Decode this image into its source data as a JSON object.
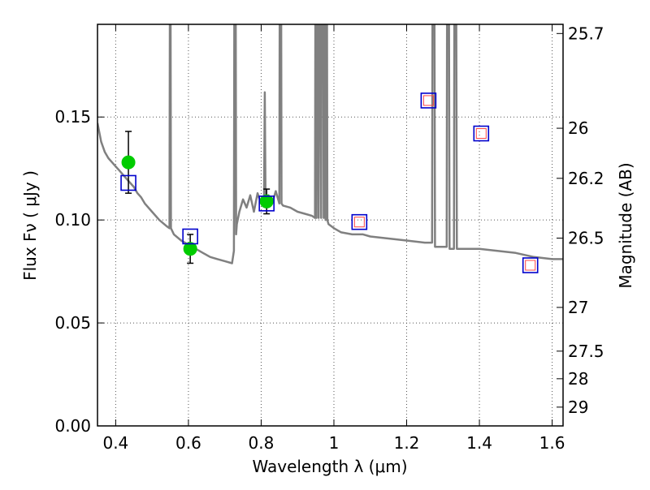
{
  "chart_data": {
    "type": "scatter",
    "xlabel": "Wavelength  λ (μm)",
    "ylabel": "Flux  Fν  ( μJy )",
    "y2label": "Magnitude (AB)",
    "xlim": [
      0.35,
      1.63
    ],
    "ylim": [
      0.0,
      0.195
    ],
    "grid": true,
    "x_ticks": [
      0.4,
      0.6,
      0.8,
      1.0,
      1.2,
      1.4,
      1.6
    ],
    "x_tick_labels": [
      "0.4",
      "0.6",
      "0.8",
      "1",
      "1.2",
      "1.4",
      "1.6"
    ],
    "y_ticks": [
      0.0,
      0.05,
      0.1,
      0.15
    ],
    "y_tick_labels": [
      "0.00",
      "0.05",
      "0.10",
      "0.15"
    ],
    "y2_ticks": [
      {
        "label": "25.7",
        "mag": 25.7
      },
      {
        "label": "26",
        "mag": 26.0
      },
      {
        "label": "26.2",
        "mag": 26.2
      },
      {
        "label": "26.5",
        "mag": 26.5
      },
      {
        "label": "27",
        "mag": 27.0
      },
      {
        "label": "27.5",
        "mag": 27.5
      },
      {
        "label": "28",
        "mag": 28.0
      },
      {
        "label": "29",
        "mag": 29.0
      }
    ],
    "colors": {
      "model": "#808080",
      "observed": "#00cc00",
      "synthetic": "#0000cc",
      "upper": "#ff4444",
      "errorbar": "#000000",
      "grid": "#555555"
    },
    "series": [
      {
        "kind": "model_spectrum",
        "x": [
          0.35,
          0.36,
          0.37,
          0.38,
          0.39,
          0.4,
          0.41,
          0.42,
          0.43,
          0.44,
          0.45,
          0.46,
          0.47,
          0.48,
          0.5,
          0.52,
          0.54,
          0.548,
          0.55,
          0.552,
          0.56,
          0.58,
          0.6,
          0.62,
          0.64,
          0.66,
          0.68,
          0.7,
          0.72,
          0.725,
          0.727,
          0.729,
          0.731,
          0.733,
          0.74,
          0.75,
          0.76,
          0.77,
          0.78,
          0.79,
          0.8,
          0.808,
          0.81,
          0.812,
          0.82,
          0.83,
          0.84,
          0.85,
          0.852,
          0.854,
          0.856,
          0.86,
          0.88,
          0.9,
          0.92,
          0.94,
          0.948,
          0.95,
          0.952,
          0.956,
          0.958,
          0.96,
          0.965,
          0.967,
          0.97,
          0.972,
          0.975,
          0.977,
          0.98,
          0.982,
          0.985,
          1.0,
          1.02,
          1.05,
          1.08,
          1.1,
          1.15,
          1.2,
          1.25,
          1.27,
          1.272,
          1.275,
          1.278,
          1.28,
          1.3,
          1.31,
          1.312,
          1.315,
          1.318,
          1.32,
          1.33,
          1.332,
          1.335,
          1.338,
          1.34,
          1.4,
          1.45,
          1.5,
          1.55,
          1.6,
          1.63
        ],
        "y": [
          0.147,
          0.138,
          0.133,
          0.13,
          0.128,
          0.126,
          0.124,
          0.122,
          0.12,
          0.118,
          0.116,
          0.113,
          0.111,
          0.108,
          0.104,
          0.1,
          0.097,
          0.096,
          0.3,
          0.096,
          0.093,
          0.09,
          0.088,
          0.086,
          0.084,
          0.082,
          0.081,
          0.08,
          0.079,
          0.085,
          0.3,
          0.3,
          0.093,
          0.098,
          0.104,
          0.11,
          0.106,
          0.112,
          0.104,
          0.113,
          0.108,
          0.112,
          0.162,
          0.11,
          0.112,
          0.108,
          0.114,
          0.108,
          0.3,
          0.3,
          0.108,
          0.107,
          0.106,
          0.104,
          0.103,
          0.102,
          0.101,
          0.3,
          0.101,
          0.3,
          0.101,
          0.3,
          0.101,
          0.3,
          0.3,
          0.101,
          0.3,
          0.1,
          0.3,
          0.1,
          0.098,
          0.096,
          0.094,
          0.093,
          0.093,
          0.092,
          0.091,
          0.09,
          0.089,
          0.089,
          0.3,
          0.3,
          0.087,
          0.087,
          0.087,
          0.087,
          0.3,
          0.3,
          0.086,
          0.086,
          0.086,
          0.3,
          0.3,
          0.086,
          0.086,
          0.086,
          0.085,
          0.084,
          0.082,
          0.081,
          0.081
        ]
      },
      {
        "kind": "observed",
        "x": [
          0.435,
          0.605,
          0.815
        ],
        "y": [
          0.128,
          0.086,
          0.109
        ],
        "yerr": [
          0.015,
          0.007,
          0.006
        ]
      },
      {
        "kind": "synthetic",
        "x": [
          0.435,
          0.605,
          0.815,
          1.07,
          1.26,
          1.405,
          1.54
        ],
        "y": [
          0.118,
          0.092,
          0.108,
          0.099,
          0.158,
          0.142,
          0.078
        ]
      },
      {
        "kind": "upper_limit",
        "x": [
          1.07,
          1.26,
          1.405,
          1.54
        ],
        "y": [
          0.099,
          0.158,
          0.142,
          0.078
        ]
      }
    ]
  }
}
